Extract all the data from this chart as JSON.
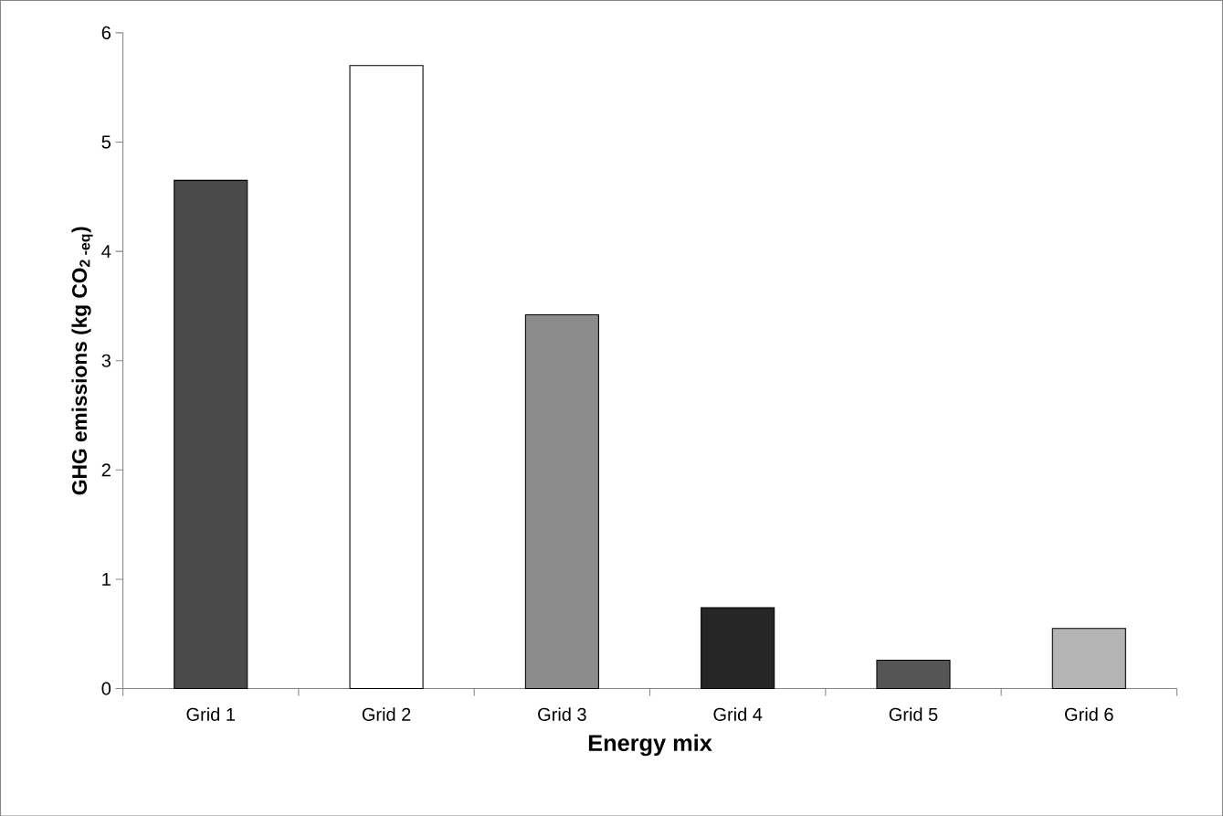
{
  "chart_data": {
    "type": "bar",
    "xlabel": "Energy mix",
    "ylabel": "GHG emissions (kg CO$_{2 -eq}$)",
    "categories": [
      "Grid 1",
      "Grid 2",
      "Grid 3",
      "Grid 4",
      "Grid 5",
      "Grid 6"
    ],
    "values": [
      4.65,
      5.7,
      3.42,
      0.74,
      0.26,
      0.55
    ],
    "colors": [
      "#4a4a4a",
      "#ffffff",
      "#8c8c8c",
      "#262626",
      "#555555",
      "#b4b4b4"
    ],
    "ylim": [
      0,
      6
    ],
    "yticks": [
      0,
      1,
      2,
      3,
      4,
      5,
      6
    ]
  }
}
